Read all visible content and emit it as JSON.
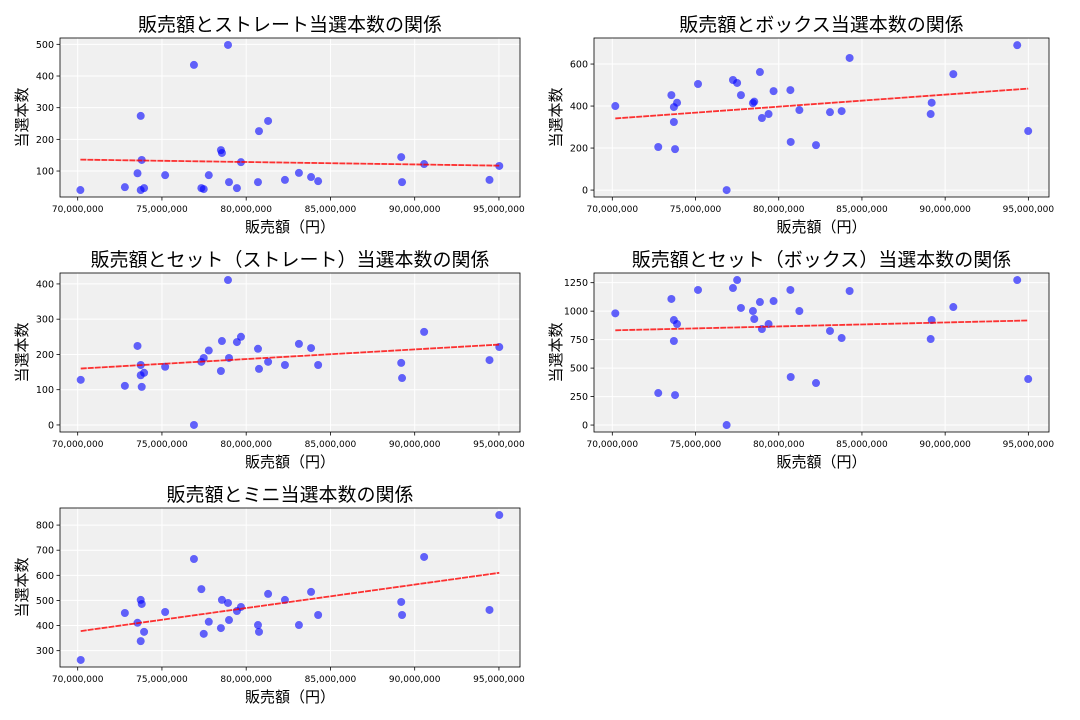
{
  "chart_data": [
    {
      "type": "scatter",
      "title": "販売額とストレート当選本数の関係",
      "xlabel": "販売額（円）",
      "ylabel": "当選本数",
      "xlim": [
        68950000,
        96250000
      ],
      "ylim": [
        18,
        520
      ],
      "xticks": [
        70000000,
        75000000,
        80000000,
        85000000,
        90000000,
        95000000
      ],
      "xtick_labels": [
        "70,000,000",
        "75,000,000",
        "80,000,000",
        "85,000,000",
        "90,000,000",
        "95,000,000"
      ],
      "yticks": [
        100,
        200,
        300,
        400,
        500
      ],
      "grid": true,
      "point_color": "#0000ff",
      "trend_color": "#ff0000",
      "trend": [
        [
          70160000,
          136
        ],
        [
          95020000,
          117
        ]
      ],
      "points": [
        [
          70160000,
          40
        ],
        [
          72800000,
          49
        ],
        [
          73550000,
          93
        ],
        [
          73740000,
          274
        ],
        [
          73800000,
          135
        ],
        [
          73740000,
          40
        ],
        [
          73940000,
          46
        ],
        [
          75190000,
          87
        ],
        [
          76900000,
          435
        ],
        [
          77340000,
          46
        ],
        [
          77480000,
          43
        ],
        [
          77780000,
          87
        ],
        [
          78500000,
          166
        ],
        [
          78560000,
          157
        ],
        [
          78920000,
          498
        ],
        [
          78980000,
          65
        ],
        [
          79450000,
          46
        ],
        [
          79690000,
          128
        ],
        [
          80700000,
          65
        ],
        [
          80760000,
          226
        ],
        [
          81300000,
          258
        ],
        [
          82300000,
          72
        ],
        [
          83130000,
          94
        ],
        [
          83850000,
          81
        ],
        [
          84270000,
          68
        ],
        [
          89200000,
          144
        ],
        [
          89250000,
          65
        ],
        [
          90560000,
          122
        ],
        [
          94440000,
          72
        ],
        [
          95020000,
          116
        ]
      ]
    },
    {
      "type": "scatter",
      "title": "販売額とボックス当選本数の関係",
      "xlabel": "販売額（円）",
      "ylabel": "当選本数",
      "xlim": [
        68900000,
        96240000
      ],
      "ylim": [
        -33,
        724
      ],
      "xticks": [
        70000000,
        75000000,
        80000000,
        85000000,
        90000000,
        95000000
      ],
      "xtick_labels": [
        "70,000,000",
        "75,000,000",
        "80,000,000",
        "85,000,000",
        "90,000,000",
        "95,000,000"
      ],
      "yticks": [
        0,
        200,
        400,
        600
      ],
      "grid": true,
      "point_color": "#0000ff",
      "trend_color": "#ff0000",
      "trend": [
        [
          70180000,
          341
        ],
        [
          94990000,
          483
        ]
      ],
      "points": [
        [
          70180000,
          400
        ],
        [
          72760000,
          205
        ],
        [
          73550000,
          452
        ],
        [
          73700000,
          324
        ],
        [
          73700000,
          395
        ],
        [
          73770000,
          195
        ],
        [
          73890000,
          416
        ],
        [
          75150000,
          505
        ],
        [
          76870000,
          0
        ],
        [
          77250000,
          524
        ],
        [
          77500000,
          510
        ],
        [
          77730000,
          452
        ],
        [
          78450000,
          414
        ],
        [
          78530000,
          421
        ],
        [
          78870000,
          562
        ],
        [
          78990000,
          343
        ],
        [
          79390000,
          362
        ],
        [
          79690000,
          471
        ],
        [
          80700000,
          476
        ],
        [
          80720000,
          229
        ],
        [
          81240000,
          381
        ],
        [
          82240000,
          214
        ],
        [
          83080000,
          371
        ],
        [
          83780000,
          376
        ],
        [
          84260000,
          629
        ],
        [
          89130000,
          362
        ],
        [
          89190000,
          416
        ],
        [
          90490000,
          552
        ],
        [
          94330000,
          690
        ],
        [
          94990000,
          281
        ]
      ]
    },
    {
      "type": "scatter",
      "title": "販売額とセット（ストレート）当選本数の関係",
      "xlabel": "販売額（円）",
      "ylabel": "当選本数",
      "xlim": [
        68950000,
        96250000
      ],
      "ylim": [
        -20,
        431
      ],
      "xticks": [
        70000000,
        75000000,
        80000000,
        85000000,
        90000000,
        95000000
      ],
      "xtick_labels": [
        "70,000,000",
        "75,000,000",
        "80,000,000",
        "85,000,000",
        "90,000,000",
        "95,000,000"
      ],
      "yticks": [
        0,
        100,
        200,
        300,
        400
      ],
      "grid": true,
      "point_color": "#0000ff",
      "trend_color": "#ff0000",
      "trend": [
        [
          70180000,
          160
        ],
        [
          95020000,
          228
        ]
      ],
      "points": [
        [
          70180000,
          128
        ],
        [
          72800000,
          111
        ],
        [
          73550000,
          224
        ],
        [
          73740000,
          170
        ],
        [
          73740000,
          141
        ],
        [
          73800000,
          108
        ],
        [
          73940000,
          148
        ],
        [
          75190000,
          165
        ],
        [
          76900000,
          0
        ],
        [
          77340000,
          179
        ],
        [
          77480000,
          190
        ],
        [
          77780000,
          211
        ],
        [
          78500000,
          153
        ],
        [
          78560000,
          238
        ],
        [
          78920000,
          411
        ],
        [
          78980000,
          190
        ],
        [
          79450000,
          235
        ],
        [
          79690000,
          250
        ],
        [
          80700000,
          216
        ],
        [
          80760000,
          159
        ],
        [
          81300000,
          179
        ],
        [
          82300000,
          170
        ],
        [
          83130000,
          230
        ],
        [
          83850000,
          218
        ],
        [
          84270000,
          170
        ],
        [
          89200000,
          176
        ],
        [
          89250000,
          133
        ],
        [
          90560000,
          264
        ],
        [
          94440000,
          184
        ],
        [
          95020000,
          221
        ]
      ]
    },
    {
      "type": "scatter",
      "title": "販売額とセット（ボックス）当選本数の関係",
      "xlabel": "販売額（円）",
      "ylabel": "当選本数",
      "xlim": [
        68900000,
        96240000
      ],
      "ylim": [
        -61,
        1335
      ],
      "xticks": [
        70000000,
        75000000,
        80000000,
        85000000,
        90000000,
        95000000
      ],
      "xtick_labels": [
        "70,000,000",
        "75,000,000",
        "80,000,000",
        "85,000,000",
        "90,000,000",
        "95,000,000"
      ],
      "yticks": [
        0,
        250,
        500,
        750,
        1000,
        1250
      ],
      "grid": true,
      "point_color": "#0000ff",
      "trend_color": "#ff0000",
      "trend": [
        [
          70180000,
          832
        ],
        [
          94990000,
          918
        ]
      ],
      "points": [
        [
          70180000,
          981
        ],
        [
          72760000,
          281
        ],
        [
          73550000,
          1107
        ],
        [
          73700000,
          922
        ],
        [
          73700000,
          738
        ],
        [
          73770000,
          263
        ],
        [
          73890000,
          887
        ],
        [
          75150000,
          1186
        ],
        [
          76870000,
          0
        ],
        [
          77250000,
          1203
        ],
        [
          77500000,
          1273
        ],
        [
          77730000,
          1028
        ],
        [
          78450000,
          1001
        ],
        [
          78530000,
          931
        ],
        [
          78870000,
          1080
        ],
        [
          78990000,
          843
        ],
        [
          79390000,
          887
        ],
        [
          79690000,
          1089
        ],
        [
          80700000,
          1186
        ],
        [
          80720000,
          422
        ],
        [
          81240000,
          1001
        ],
        [
          82240000,
          369
        ],
        [
          83080000,
          826
        ],
        [
          83780000,
          764
        ],
        [
          84260000,
          1177
        ],
        [
          89130000,
          755
        ],
        [
          89190000,
          922
        ],
        [
          90490000,
          1036
        ],
        [
          94330000,
          1273
        ],
        [
          94990000,
          404
        ]
      ]
    },
    {
      "type": "scatter",
      "title": "販売額とミニ当選本数の関係",
      "xlabel": "販売額（円）",
      "ylabel": "当選本数",
      "xlim": [
        68950000,
        96250000
      ],
      "ylim": [
        235,
        868
      ],
      "xticks": [
        70000000,
        75000000,
        80000000,
        85000000,
        90000000,
        95000000
      ],
      "xtick_labels": [
        "70,000,000",
        "75,000,000",
        "80,000,000",
        "85,000,000",
        "90,000,000",
        "95,000,000"
      ],
      "yticks": [
        300,
        400,
        500,
        600,
        700,
        800
      ],
      "grid": true,
      "point_color": "#0000ff",
      "trend_color": "#ff0000",
      "trend": [
        [
          70180000,
          378
        ],
        [
          95020000,
          610
        ]
      ],
      "points": [
        [
          70180000,
          263
        ],
        [
          72800000,
          450
        ],
        [
          73550000,
          411
        ],
        [
          73740000,
          502
        ],
        [
          73740000,
          338
        ],
        [
          73800000,
          486
        ],
        [
          73940000,
          375
        ],
        [
          75190000,
          454
        ],
        [
          76900000,
          665
        ],
        [
          77340000,
          545
        ],
        [
          77480000,
          367
        ],
        [
          77780000,
          415
        ],
        [
          78500000,
          390
        ],
        [
          78560000,
          502
        ],
        [
          78920000,
          490
        ],
        [
          78980000,
          422
        ],
        [
          79450000,
          458
        ],
        [
          79690000,
          474
        ],
        [
          80700000,
          402
        ],
        [
          80760000,
          375
        ],
        [
          81300000,
          526
        ],
        [
          82300000,
          502
        ],
        [
          83130000,
          402
        ],
        [
          83850000,
          534
        ],
        [
          84270000,
          442
        ],
        [
          89200000,
          494
        ],
        [
          89250000,
          442
        ],
        [
          90560000,
          673
        ],
        [
          94440000,
          462
        ],
        [
          95020000,
          840
        ]
      ]
    }
  ]
}
